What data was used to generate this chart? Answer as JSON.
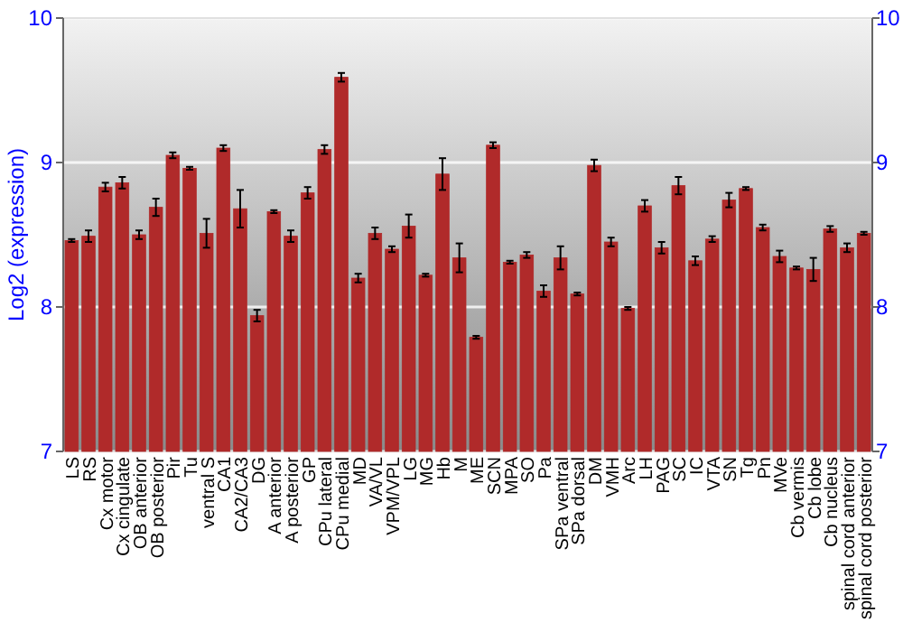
{
  "chart_data": {
    "type": "bar",
    "ylabel": "Log2 (expression)",
    "categories": [
      "LS",
      "RS",
      "Cx motor",
      "Cx cingulate",
      "OB anterior",
      "OB posterior",
      "Pir",
      "Tu",
      "ventral S",
      "CA1",
      "CA2/CA3",
      "DG",
      "A anterior",
      "A posterior",
      "GP",
      "CPu lateral",
      "CPu medial",
      "MD",
      "VA/VL",
      "VPM/VPL",
      "LG",
      "MG",
      "Hb",
      "M",
      "ME",
      "SCN",
      "MPA",
      "SO",
      "Pa",
      "SPa ventral",
      "SPa dorsal",
      "DM",
      "VMH",
      "Arc",
      "LH",
      "PAG",
      "SC",
      "IC",
      "VTA",
      "SN",
      "Tg",
      "Pn",
      "MVe",
      "Cb vermis",
      "Cb lobe",
      "Cb nucleus",
      "spinal cord anterior",
      "spinal cord posterior"
    ],
    "values": [
      8.46,
      8.49,
      8.83,
      8.86,
      8.5,
      8.69,
      9.05,
      8.96,
      8.51,
      9.1,
      8.68,
      7.94,
      8.66,
      8.49,
      8.79,
      9.09,
      9.59,
      8.2,
      8.51,
      8.4,
      8.56,
      8.22,
      8.92,
      8.34,
      7.79,
      9.12,
      8.31,
      8.36,
      8.11,
      8.34,
      8.09,
      8.98,
      8.45,
      7.99,
      8.7,
      8.41,
      8.84,
      8.32,
      8.47,
      8.74,
      8.82,
      8.55,
      8.35,
      8.27,
      8.26,
      8.54,
      8.41,
      8.51
    ],
    "errors": [
      0.01,
      0.04,
      0.03,
      0.04,
      0.03,
      0.06,
      0.02,
      0.01,
      0.1,
      0.02,
      0.13,
      0.04,
      0.01,
      0.04,
      0.04,
      0.03,
      0.03,
      0.03,
      0.04,
      0.02,
      0.08,
      0.01,
      0.11,
      0.1,
      0.01,
      0.02,
      0.01,
      0.02,
      0.04,
      0.08,
      0.01,
      0.04,
      0.03,
      0.01,
      0.04,
      0.04,
      0.06,
      0.03,
      0.02,
      0.05,
      0.01,
      0.02,
      0.04,
      0.01,
      0.08,
      0.02,
      0.03,
      0.01
    ],
    "color": "#b02a2a",
    "ylim": [
      7,
      10
    ],
    "yticks": [
      7,
      8,
      9,
      10
    ],
    "y2lim": [
      7,
      10
    ],
    "y2ticks": [
      7,
      8,
      9,
      10
    ],
    "grid": "y"
  }
}
